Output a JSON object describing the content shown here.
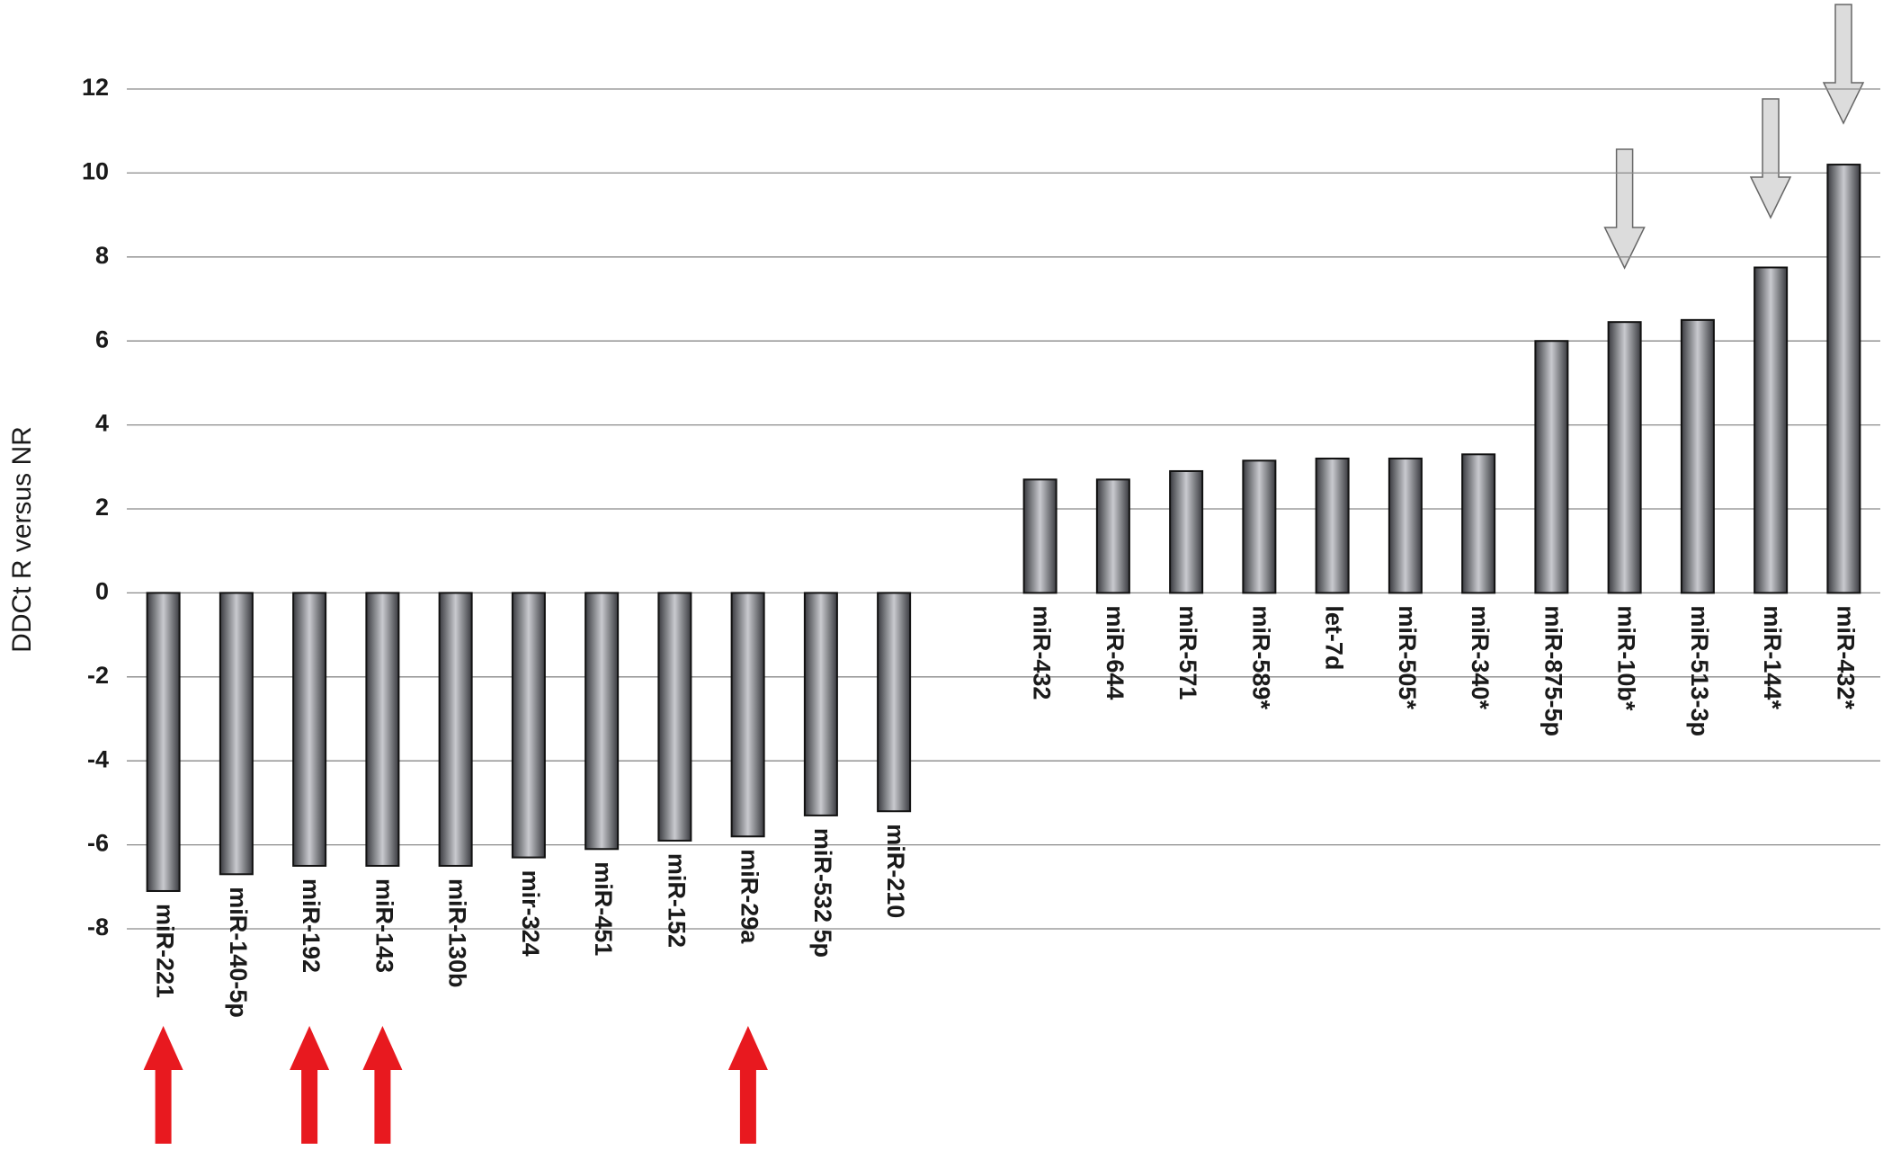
{
  "chart_data": {
    "type": "bar",
    "y_label": "DDCt R versus NR",
    "categories": [
      "miR-221",
      "miR-140-5p",
      "miR-192",
      "miR-143",
      "miR-130b",
      "mir-324",
      "miR-451",
      "miR-152",
      "miR-29a",
      "miR-532 5p",
      "miR-210",
      null,
      "miR-432",
      "miR-644",
      "miR-571",
      "miR-589*",
      "let-7d",
      "miR-505*",
      "miR-340*",
      "miR-875-5p",
      "miR-10b*",
      "miR-513-3p",
      "miR-144*",
      "miR-432*"
    ],
    "values": [
      -7.1,
      -6.7,
      -6.5,
      -6.5,
      -6.5,
      -6.3,
      -6.1,
      -5.9,
      -5.8,
      -5.3,
      -5.2,
      null,
      2.7,
      2.7,
      2.9,
      3.15,
      3.2,
      3.2,
      3.3,
      6.0,
      6.45,
      6.5,
      7.75,
      10.2
    ],
    "color": "#8c8d92",
    "ylim": [
      -8,
      12
    ],
    "yticks": [
      -8,
      -6,
      -4,
      -2,
      0,
      2,
      4,
      6,
      8,
      10,
      12
    ],
    "grid": true
  }
}
